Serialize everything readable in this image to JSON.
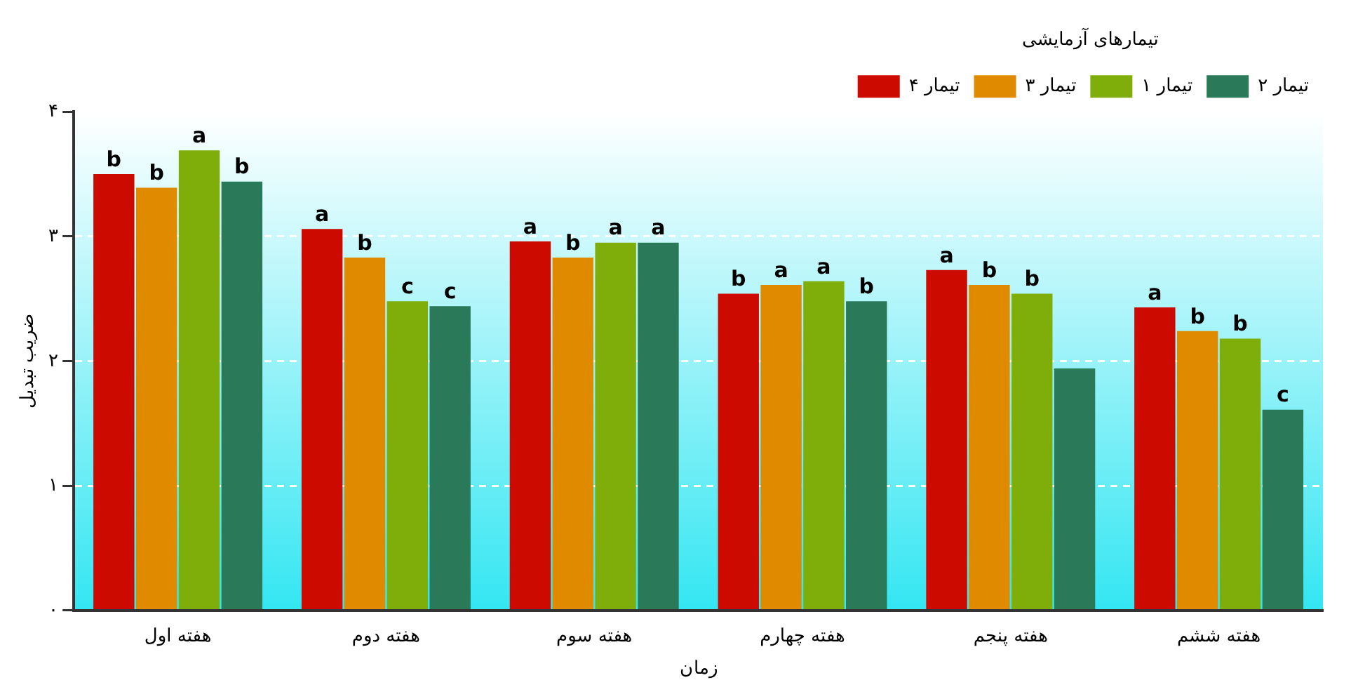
{
  "chart_data": {
    "type": "bar",
    "xlabel": "زمان",
    "ylabel": "ضریب تبدیل",
    "legend_title": "تیمارهای آزمایشی",
    "categories": [
      "هفته اول",
      "هفته دوم",
      "هفته سوم",
      "هفته چهارم",
      "هفته پنجم",
      "هفته ششم"
    ],
    "series": [
      {
        "name": "تیمار ۴",
        "color": "#cc0a00",
        "values": [
          3.5,
          3.06,
          2.96,
          2.54,
          2.73,
          2.43
        ],
        "value_labels": [
          "b",
          "a",
          "a",
          "b",
          "a",
          "a"
        ]
      },
      {
        "name": "تیمار ۳",
        "color": "#e08a00",
        "values": [
          3.39,
          2.83,
          2.83,
          2.61,
          2.61,
          2.24
        ],
        "value_labels": [
          "b",
          "b",
          "b",
          "a",
          "b",
          "b"
        ]
      },
      {
        "name": "تیمار ۱",
        "color": "#7fae0a",
        "values": [
          3.69,
          2.48,
          2.95,
          2.64,
          2.54,
          2.18
        ],
        "value_labels": [
          "a",
          "c",
          "a",
          "a",
          "b",
          "b"
        ]
      },
      {
        "name": "تیمار ۲",
        "color": "#2a7a5a",
        "values": [
          3.44,
          2.44,
          2.95,
          2.48,
          1.94,
          1.61
        ],
        "value_labels": [
          "b",
          "c",
          "a",
          "b",
          null,
          "c"
        ]
      }
    ],
    "ylim": [
      0,
      4
    ],
    "yticks": [
      {
        "value": 0,
        "label": "۰"
      },
      {
        "value": 1,
        "label": "۱"
      },
      {
        "value": 2,
        "label": "۲"
      },
      {
        "value": 3,
        "label": "۳"
      },
      {
        "value": 4,
        "label": "۴"
      }
    ],
    "grid": "y",
    "legend": "top right"
  }
}
